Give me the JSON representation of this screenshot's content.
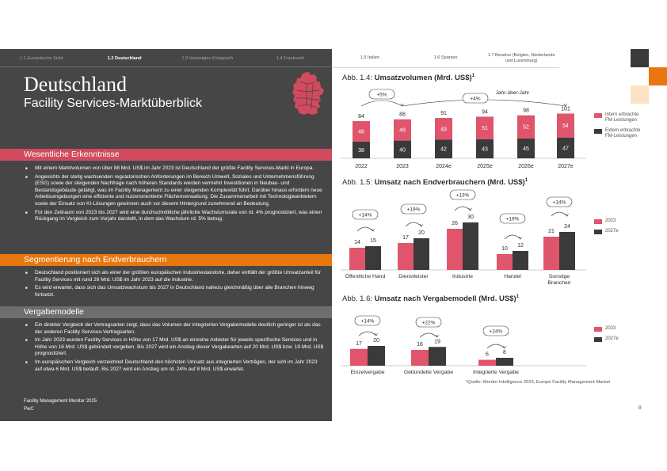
{
  "tabs_left": [
    {
      "label": "1.1 Europäische Sicht"
    },
    {
      "label": "1.2 Deutschland"
    },
    {
      "label": "1.3 Vereinigtes Königreich"
    },
    {
      "label": "1.4 Frankreich"
    }
  ],
  "tabs_right": [
    {
      "label": "1.5 Italien"
    },
    {
      "label": "1.6 Spanien"
    },
    {
      "label": "1.7 Benelux (Belgien, Niederlande und Luxemburg)"
    }
  ],
  "title": "Deutschland",
  "subtitle": "Facility Services-Marktüberblick",
  "sections": {
    "erkenntnisse": {
      "heading": "Wesentliche Erkenntnisse",
      "bullets": [
        "Mit einem Marktvolumen von über 88 Mrd. US$ im Jahr 2023 ist Deutschland der größte Facility Services-Markt in Europa.",
        "Angesichts der stetig wachsenden regulatorischen Anforderungen im Bereich Umwelt, Soziales und Unternehmensführung (ESG) sowie der steigenden Nachfrage nach höheren Standards werden vermehrt Investitionen in Neubau- und Bestandsgebäude getätigt, was im Facility Management zu einer steigenden Komplexität führt. Darüber hinaus erfordern neue Arbeitsumgebungen eine effiziente und nutzerorientierte Flächenverwaltung. Die Zusammenarbeit mit Technologieanbietern sowie der Einsatz von KI-Lösungen gewinnen auch vor diesem Hintergrund zunehmend an Bedeutung.",
        "Für den Zeitraum von 2023 bis 2027 wird eine durchschnittliche jährliche Wachstumsrate von rd. 4% prognostiziert, was einen Rückgang im Vergleich zum Vorjahr darstellt, in dem das Wachstum rd. 5% betrug."
      ]
    },
    "segmentierung": {
      "heading": "Segmentierung nach Endverbrauchern",
      "bullets": [
        "Deutschland positioniert sich als einer der größten europäischen Industriestandorte, daher entfällt der größte Umsatzanteil für Facility Services mit rund 26 Mrd. US$ im Jahr 2023 auf die Industrie.",
        "Es wird erwartet, dass sich das Umsatzwachstum bis 2027 in Deutschland nahezu gleichmäßig über alle Branchen hinweg fortsetzt."
      ]
    },
    "vergabe": {
      "heading": "Vergabemodelle",
      "bullets": [
        "Ein direkter Vergleich der Vertragsarten zeigt, dass das Volumen der integrierten Vergabemodelle deutlich geringer ist als das der anderen Facility Services-Vertragsarten.",
        "Im Jahr 2023 wurden Facility Services in Höhe von 17 Mrd. US$ an einzelne Anbieter für jeweils spezifische Services und in Höhe von 16 Mrd. US$ gebündelt vergeben. Bis 2027 wird ein Anstieg dieser Vergabearten auf 20 Mrd. US$ bzw. 19 Mrd. US$ prognostiziert.",
        "Im europäischen Vergleich verzeichnet Deutschland den höchsten Umsatz aus integrierten Verträgen, der sich im Jahr 2023 auf etwa 6 Mrd. US$ beläuft. Bis 2027 wird ein Anstieg um rd. 24% auf 8 Mrd. US$ erwartet."
      ]
    }
  },
  "footer": {
    "line1": "Facility Management Monitor 2025",
    "line2": "PwC"
  },
  "page_number": "8",
  "source": "¹Quelle: Mordor Intelligence 2023, Europe Facility Management Market",
  "colors": {
    "pink": "#e0546c",
    "dark": "#3a3a3a",
    "orange": "#e8770f",
    "panel": "#464646",
    "accent_red": "#d14a5e"
  },
  "chart_data": [
    {
      "type": "bar",
      "stacked": true,
      "title_prefix": "Abb. 1.4: ",
      "title": "Umsatzvolumen (Mrd. US$)",
      "title_sup": "1",
      "categories": [
        "2022",
        "2023",
        "2024e",
        "2025e",
        "2026e",
        "2027e"
      ],
      "totals": [
        "84",
        "88",
        "91",
        "94",
        "98",
        "101"
      ],
      "series": [
        {
          "name": "Extern erbrachte FM-Leistungen",
          "values": [
            38,
            40,
            42,
            43,
            45,
            47
          ],
          "color": "#3a3a3a"
        },
        {
          "name": "Intern erbrachte FM-Leistungen",
          "values": [
            46,
            48,
            49,
            51,
            52,
            54
          ],
          "color": "#e0546c"
        }
      ],
      "annotations": [
        "+5%",
        "+4%",
        "Jahr-über-Jahr"
      ]
    },
    {
      "type": "bar",
      "title_prefix": "Abb. 1.5: ",
      "title": "Umsatz nach Endverbrauchern (Mrd. US$)",
      "title_sup": "1",
      "categories": [
        "Öffentliche Hand",
        "Dienstleister",
        "Industrie",
        "Handel",
        "Sonstige Branchen"
      ],
      "series": [
        {
          "name": "2023",
          "values": [
            14,
            17,
            26,
            10,
            21
          ],
          "color": "#e0546c"
        },
        {
          "name": "2027e",
          "values": [
            15,
            20,
            30,
            12,
            24
          ],
          "color": "#3a3a3a"
        }
      ],
      "annotations": [
        "+14%",
        "+19%",
        "+13%",
        "+19%",
        "+14%"
      ]
    },
    {
      "type": "bar",
      "title_prefix": "Abb. 1.6: ",
      "title": "Umsatz nach Vergabemodell (Mrd. US$)",
      "title_sup": "1",
      "categories": [
        "Einzelvergabe",
        "Gebündelte Vergabe",
        "Integrierte Vergabe"
      ],
      "series": [
        {
          "name": "2023",
          "values": [
            17,
            16,
            6
          ],
          "color": "#e0546c"
        },
        {
          "name": "2027e",
          "values": [
            20,
            19,
            8
          ],
          "color": "#3a3a3a"
        }
      ],
      "annotations": [
        "+14%",
        "+22%",
        "+24%"
      ]
    }
  ]
}
